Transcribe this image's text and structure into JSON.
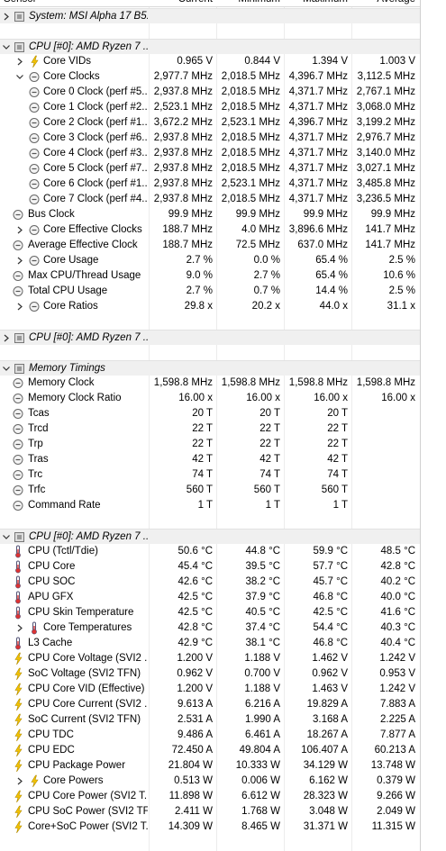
{
  "header": {
    "columns": [
      "Sensor",
      "Current",
      "Minimum",
      "Maximum",
      "Average"
    ]
  },
  "rows": [
    {
      "label": "System: MSI Alpha 17 B5..."
    },
    {
      "label": "CPU [#0]: AMD Ryzen 7 ..."
    },
    {
      "label": "Core VIDs",
      "values": [
        "0.965 V",
        "0.844 V",
        "1.394 V",
        "1.003 V"
      ]
    },
    {
      "label": "Core Clocks",
      "values": [
        "2,977.7 MHz",
        "2,018.5 MHz",
        "4,396.7 MHz",
        "3,112.5 MHz"
      ]
    },
    {
      "label": "Core 0 Clock (perf #5...",
      "values": [
        "2,937.8 MHz",
        "2,018.5 MHz",
        "4,371.7 MHz",
        "2,767.1 MHz"
      ]
    },
    {
      "label": "Core 1 Clock (perf #2...",
      "values": [
        "2,523.1 MHz",
        "2,018.5 MHz",
        "4,371.7 MHz",
        "3,068.0 MHz"
      ]
    },
    {
      "label": "Core 2 Clock (perf #1...",
      "values": [
        "3,672.2 MHz",
        "2,523.1 MHz",
        "4,396.7 MHz",
        "3,199.2 MHz"
      ]
    },
    {
      "label": "Core 3 Clock (perf #6...",
      "values": [
        "2,937.8 MHz",
        "2,018.5 MHz",
        "4,371.7 MHz",
        "2,976.7 MHz"
      ]
    },
    {
      "label": "Core 4 Clock (perf #3...",
      "values": [
        "2,937.8 MHz",
        "2,018.5 MHz",
        "4,371.7 MHz",
        "3,140.0 MHz"
      ]
    },
    {
      "label": "Core 5 Clock (perf #7...",
      "values": [
        "2,937.8 MHz",
        "2,018.5 MHz",
        "4,371.7 MHz",
        "3,027.1 MHz"
      ]
    },
    {
      "label": "Core 6 Clock (perf #1...",
      "values": [
        "2,937.8 MHz",
        "2,523.1 MHz",
        "4,371.7 MHz",
        "3,485.8 MHz"
      ]
    },
    {
      "label": "Core 7 Clock (perf #4...",
      "values": [
        "2,937.8 MHz",
        "2,018.5 MHz",
        "4,371.7 MHz",
        "3,236.5 MHz"
      ]
    },
    {
      "label": "Bus Clock",
      "values": [
        "99.9 MHz",
        "99.9 MHz",
        "99.9 MHz",
        "99.9 MHz"
      ]
    },
    {
      "label": "Core Effective Clocks",
      "values": [
        "188.7 MHz",
        "4.0 MHz",
        "3,896.6 MHz",
        "141.7 MHz"
      ]
    },
    {
      "label": "Average Effective Clock",
      "values": [
        "188.7 MHz",
        "72.5 MHz",
        "637.0 MHz",
        "141.7 MHz"
      ]
    },
    {
      "label": "Core Usage",
      "values": [
        "2.7 %",
        "0.0 %",
        "65.4 %",
        "2.5 %"
      ]
    },
    {
      "label": "Max CPU/Thread Usage",
      "values": [
        "9.0 %",
        "2.7 %",
        "65.4 %",
        "10.6 %"
      ]
    },
    {
      "label": "Total CPU Usage",
      "values": [
        "2.7 %",
        "0.7 %",
        "14.4 %",
        "2.5 %"
      ]
    },
    {
      "label": "Core Ratios",
      "values": [
        "29.8 x",
        "20.2 x",
        "44.0 x",
        "31.1 x"
      ]
    },
    {
      "label": "CPU [#0]: AMD Ryzen 7 ..."
    },
    {
      "label": "Memory Timings"
    },
    {
      "label": "Memory Clock",
      "values": [
        "1,598.8 MHz",
        "1,598.8 MHz",
        "1,598.8 MHz",
        "1,598.8 MHz"
      ]
    },
    {
      "label": "Memory Clock Ratio",
      "values": [
        "16.00 x",
        "16.00 x",
        "16.00 x",
        "16.00 x"
      ]
    },
    {
      "label": "Tcas",
      "values": [
        "20 T",
        "20 T",
        "20 T"
      ]
    },
    {
      "label": "Trcd",
      "values": [
        "22 T",
        "22 T",
        "22 T"
      ]
    },
    {
      "label": "Trp",
      "values": [
        "22 T",
        "22 T",
        "22 T"
      ]
    },
    {
      "label": "Tras",
      "values": [
        "42 T",
        "42 T",
        "42 T"
      ]
    },
    {
      "label": "Trc",
      "values": [
        "74 T",
        "74 T",
        "74 T"
      ]
    },
    {
      "label": "Trfc",
      "values": [
        "560 T",
        "560 T",
        "560 T"
      ]
    },
    {
      "label": "Command Rate",
      "values": [
        "1 T",
        "1 T",
        "1 T"
      ]
    },
    {
      "label": "CPU [#0]: AMD Ryzen 7 ..."
    },
    {
      "label": "CPU (Tctl/Tdie)",
      "values": [
        "50.6 °C",
        "44.8 °C",
        "59.9 °C",
        "48.5 °C"
      ]
    },
    {
      "label": "CPU Core",
      "values": [
        "45.4 °C",
        "39.5 °C",
        "57.7 °C",
        "42.8 °C"
      ]
    },
    {
      "label": "CPU SOC",
      "values": [
        "42.6 °C",
        "38.2 °C",
        "45.7 °C",
        "40.2 °C"
      ]
    },
    {
      "label": "APU GFX",
      "values": [
        "42.5 °C",
        "37.9 °C",
        "46.8 °C",
        "40.0 °C"
      ]
    },
    {
      "label": "CPU Skin Temperature",
      "values": [
        "42.5 °C",
        "40.5 °C",
        "42.5 °C",
        "41.6 °C"
      ]
    },
    {
      "label": "Core Temperatures",
      "values": [
        "42.8 °C",
        "37.4 °C",
        "54.4 °C",
        "40.3 °C"
      ]
    },
    {
      "label": "L3 Cache",
      "values": [
        "42.9 °C",
        "38.1 °C",
        "46.8 °C",
        "40.4 °C"
      ]
    },
    {
      "label": "CPU Core Voltage (SVI2 ...",
      "values": [
        "1.200 V",
        "1.188 V",
        "1.462 V",
        "1.242 V"
      ]
    },
    {
      "label": "SoC Voltage (SVI2 TFN)",
      "values": [
        "0.962 V",
        "0.700 V",
        "0.962 V",
        "0.953 V"
      ]
    },
    {
      "label": "CPU Core VID (Effective)",
      "values": [
        "1.200 V",
        "1.188 V",
        "1.463 V",
        "1.242 V"
      ]
    },
    {
      "label": "CPU Core Current (SVI2 ...",
      "values": [
        "9.613 A",
        "6.216 A",
        "19.829 A",
        "7.883 A"
      ]
    },
    {
      "label": "SoC Current (SVI2 TFN)",
      "values": [
        "2.531 A",
        "1.990 A",
        "3.168 A",
        "2.225 A"
      ]
    },
    {
      "label": "CPU TDC",
      "values": [
        "9.486 A",
        "6.461 A",
        "18.267 A",
        "7.877 A"
      ]
    },
    {
      "label": "CPU EDC",
      "values": [
        "72.450 A",
        "49.804 A",
        "106.407 A",
        "60.213 A"
      ]
    },
    {
      "label": "CPU Package Power",
      "values": [
        "21.804 W",
        "10.333 W",
        "34.129 W",
        "13.748 W"
      ]
    },
    {
      "label": "Core Powers",
      "values": [
        "0.513 W",
        "0.006 W",
        "6.162 W",
        "0.379 W"
      ]
    },
    {
      "label": "CPU Core Power (SVI2 T...",
      "values": [
        "11.898 W",
        "6.612 W",
        "28.323 W",
        "9.266 W"
      ]
    },
    {
      "label": "CPU SoC Power (SVI2 TFN)",
      "values": [
        "2.411 W",
        "1.768 W",
        "3.048 W",
        "2.049 W"
      ]
    },
    {
      "label": "Core+SoC Power (SVI2 T...",
      "values": [
        "14.309 W",
        "8.465 W",
        "31.371 W",
        "11.315 W"
      ]
    }
  ]
}
